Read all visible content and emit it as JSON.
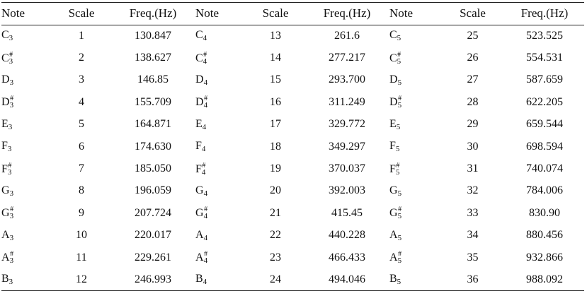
{
  "headers": {
    "note": "Note",
    "scale": "Scale",
    "freq": "Freq.(Hz)"
  },
  "sharp_symbol": "#",
  "rows": [
    [
      {
        "note": "C",
        "octave": "3",
        "sharp": false,
        "scale": "1",
        "freq": "130.847"
      },
      {
        "note": "C",
        "octave": "4",
        "sharp": false,
        "scale": "13",
        "freq": "261.6"
      },
      {
        "note": "C",
        "octave": "5",
        "sharp": false,
        "scale": "25",
        "freq": "523.525"
      }
    ],
    [
      {
        "note": "C",
        "octave": "3",
        "sharp": true,
        "scale": "2",
        "freq": "138.627"
      },
      {
        "note": "C",
        "octave": "4",
        "sharp": true,
        "scale": "14",
        "freq": "277.217"
      },
      {
        "note": "C",
        "octave": "5",
        "sharp": true,
        "scale": "26",
        "freq": "554.531"
      }
    ],
    [
      {
        "note": "D",
        "octave": "3",
        "sharp": false,
        "scale": "3",
        "freq": "146.85"
      },
      {
        "note": "D",
        "octave": "4",
        "sharp": false,
        "scale": "15",
        "freq": "293.700"
      },
      {
        "note": "D",
        "octave": "5",
        "sharp": false,
        "scale": "27",
        "freq": "587.659"
      }
    ],
    [
      {
        "note": "D",
        "octave": "3",
        "sharp": true,
        "scale": "4",
        "freq": "155.709"
      },
      {
        "note": "D",
        "octave": "4",
        "sharp": true,
        "scale": "16",
        "freq": "311.249"
      },
      {
        "note": "D",
        "octave": "5",
        "sharp": true,
        "scale": "28",
        "freq": "622.205"
      }
    ],
    [
      {
        "note": "E",
        "octave": "3",
        "sharp": false,
        "scale": "5",
        "freq": "164.871"
      },
      {
        "note": "E",
        "octave": "4",
        "sharp": false,
        "scale": "17",
        "freq": "329.772"
      },
      {
        "note": "E",
        "octave": "5",
        "sharp": false,
        "scale": "29",
        "freq": "659.544"
      }
    ],
    [
      {
        "note": "F",
        "octave": "3",
        "sharp": false,
        "scale": "6",
        "freq": "174.630"
      },
      {
        "note": "F",
        "octave": "4",
        "sharp": false,
        "scale": "18",
        "freq": "349.297"
      },
      {
        "note": "F",
        "octave": "5",
        "sharp": false,
        "scale": "30",
        "freq": "698.594"
      }
    ],
    [
      {
        "note": "F",
        "octave": "3",
        "sharp": true,
        "scale": "7",
        "freq": "185.050"
      },
      {
        "note": "F",
        "octave": "4",
        "sharp": true,
        "scale": "19",
        "freq": "370.037"
      },
      {
        "note": "F",
        "octave": "5",
        "sharp": true,
        "scale": "31",
        "freq": "740.074"
      }
    ],
    [
      {
        "note": "G",
        "octave": "3",
        "sharp": false,
        "scale": "8",
        "freq": "196.059"
      },
      {
        "note": "G",
        "octave": "4",
        "sharp": false,
        "scale": "20",
        "freq": "392.003"
      },
      {
        "note": "G",
        "octave": "5",
        "sharp": false,
        "scale": "32",
        "freq": "784.006"
      }
    ],
    [
      {
        "note": "G",
        "octave": "3",
        "sharp": true,
        "scale": "9",
        "freq": "207.724"
      },
      {
        "note": "G",
        "octave": "4",
        "sharp": true,
        "scale": "21",
        "freq": "415.45"
      },
      {
        "note": "G",
        "octave": "5",
        "sharp": true,
        "scale": "33",
        "freq": "830.90"
      }
    ],
    [
      {
        "note": "A",
        "octave": "3",
        "sharp": false,
        "scale": "10",
        "freq": "220.017"
      },
      {
        "note": "A",
        "octave": "4",
        "sharp": false,
        "scale": "22",
        "freq": "440.228"
      },
      {
        "note": "A",
        "octave": "5",
        "sharp": false,
        "scale": "34",
        "freq": "880.456"
      }
    ],
    [
      {
        "note": "A",
        "octave": "3",
        "sharp": true,
        "scale": "11",
        "freq": "229.261"
      },
      {
        "note": "A",
        "octave": "4",
        "sharp": true,
        "scale": "23",
        "freq": "466.433"
      },
      {
        "note": "A",
        "octave": "5",
        "sharp": true,
        "scale": "35",
        "freq": "932.866"
      }
    ],
    [
      {
        "note": "B",
        "octave": "3",
        "sharp": false,
        "scale": "12",
        "freq": "246.993"
      },
      {
        "note": "B",
        "octave": "4",
        "sharp": false,
        "scale": "24",
        "freq": "494.046"
      },
      {
        "note": "B",
        "octave": "5",
        "sharp": false,
        "scale": "36",
        "freq": "988.092"
      }
    ]
  ]
}
